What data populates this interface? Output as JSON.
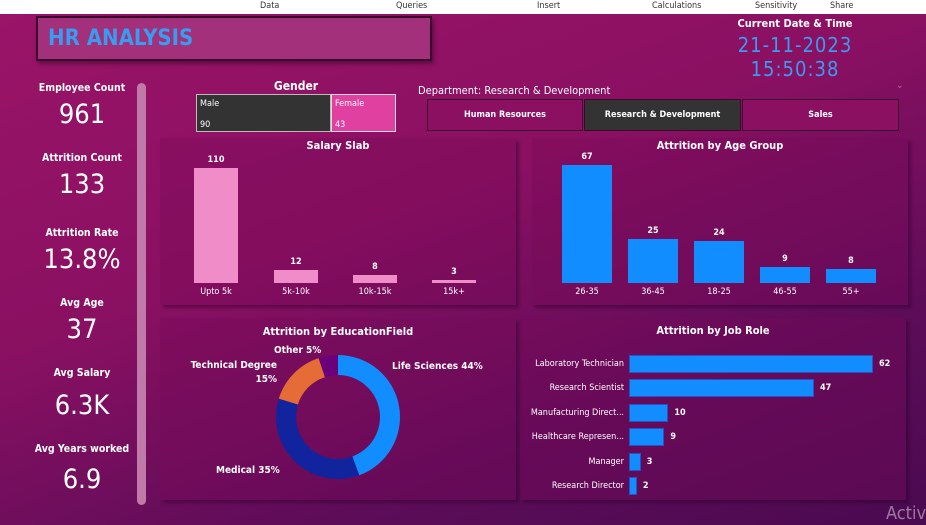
{
  "ribbon": [
    "Data",
    "Queries",
    "Insert",
    "Calculations",
    "Sensitivity",
    "Share"
  ],
  "title": "HR ANALYSIS",
  "datetime": {
    "label": "Current Date & Time",
    "value": "21-11-2023 15:50:38"
  },
  "kpis": [
    {
      "label": "Employee Count",
      "value": "961"
    },
    {
      "label": "Attrition Count",
      "value": "133"
    },
    {
      "label": "Attrition Rate",
      "value": "13.8%"
    },
    {
      "label": "Avg Age",
      "value": "37"
    },
    {
      "label": "Avg Salary",
      "value": "6.3K"
    },
    {
      "label": "Avg Years worked",
      "value": "6.9"
    }
  ],
  "gender": {
    "title": "Gender",
    "items": [
      {
        "label": "Male",
        "value": "90",
        "color": "#333333"
      },
      {
        "label": "Female",
        "value": "43",
        "color": "#e040a0"
      }
    ]
  },
  "department": {
    "label": "Department: Research & Development",
    "options": [
      "Human Resources",
      "Research & Development",
      "Sales"
    ],
    "selected": "Research & Development"
  },
  "watermark": "Activ",
  "chart_data": [
    {
      "type": "bar",
      "title": "Salary Slab",
      "categories": [
        "Upto 5k",
        "5k-10k",
        "10k-15k",
        "15k+"
      ],
      "values": [
        110,
        12,
        8,
        3
      ],
      "color": "#f08cc8"
    },
    {
      "type": "bar",
      "title": "Attrition by Age Group",
      "categories": [
        "26-35",
        "36-45",
        "18-25",
        "46-55",
        "55+"
      ],
      "values": [
        67,
        25,
        24,
        9,
        8
      ],
      "color": "#118dff"
    },
    {
      "type": "pie",
      "title": "Attrition by EducationField",
      "categories": [
        "Life Sciences",
        "Medical",
        "Technical Degree",
        "Other"
      ],
      "values": [
        44,
        35,
        15,
        5
      ],
      "labels": [
        "Life Sciences 44%",
        "Medical 35%",
        "Technical Degree 15%",
        "Other 5%"
      ],
      "colors": [
        "#118dff",
        "#12239e",
        "#e66c37",
        "#6b007b"
      ]
    },
    {
      "type": "bar",
      "orientation": "horizontal",
      "title": "Attrition by Job Role",
      "categories": [
        "Laboratory Technician",
        "Research Scientist",
        "Manufacturing Direct...",
        "Healthcare Represen...",
        "Manager",
        "Research Director"
      ],
      "values": [
        62,
        47,
        10,
        9,
        3,
        2
      ],
      "color": "#118dff"
    }
  ]
}
